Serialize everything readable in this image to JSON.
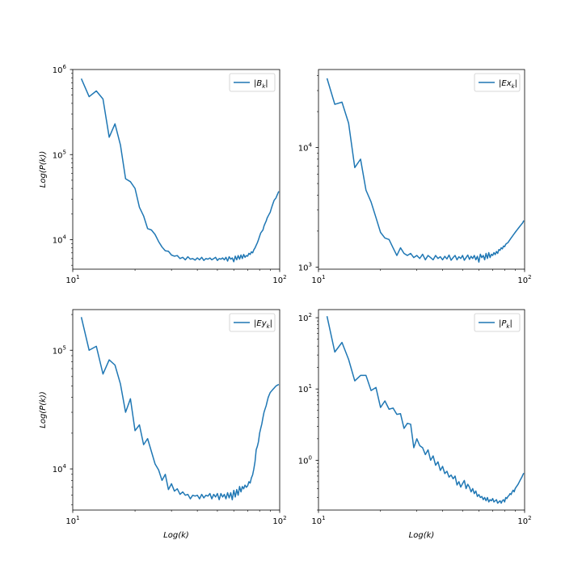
{
  "chart_data": [
    {
      "type": "line",
      "xscale": "log",
      "yscale": "log",
      "xlim": [
        10,
        100
      ],
      "ylim": [
        4500,
        1000000
      ],
      "xlabel": "",
      "ylabel": "Log(P(k))",
      "xticks": [
        {
          "base": "10",
          "exp": "1",
          "value": 10
        },
        {
          "base": "10",
          "exp": "2",
          "value": 100
        }
      ],
      "yticks": [
        {
          "base": "10",
          "exp": "4",
          "value": 10000
        },
        {
          "base": "10",
          "exp": "5",
          "value": 100000
        },
        {
          "base": "10",
          "exp": "6",
          "value": 1000000
        }
      ],
      "legend": "top-right",
      "color": "#1f77b4",
      "series": [
        {
          "name": "|B_k|",
          "x": [
            11,
            12,
            13,
            14,
            15,
            16,
            17,
            18,
            19,
            20,
            21,
            22,
            23,
            24,
            25,
            26,
            27,
            28,
            29,
            30,
            31,
            32,
            33,
            34,
            35,
            36,
            37,
            38,
            39,
            40,
            41,
            42,
            43,
            44,
            45,
            46,
            47,
            48,
            49,
            50,
            51,
            52,
            53,
            54,
            55,
            56,
            57,
            58,
            59,
            60,
            61,
            62,
            63,
            64,
            65,
            66,
            67,
            68,
            69,
            70,
            71,
            72,
            73,
            74,
            75,
            76,
            77,
            78,
            79,
            80,
            81,
            82,
            83,
            84,
            85,
            86,
            87,
            88,
            89,
            90,
            91,
            92,
            93,
            94,
            95,
            96,
            97,
            98,
            99
          ],
          "y": [
            780000,
            480000,
            560000,
            450000,
            160000,
            230000,
            130000,
            52000,
            48000,
            40000,
            24000,
            19000,
            13500,
            13000,
            11500,
            9500,
            8200,
            7400,
            7300,
            6600,
            6400,
            6500,
            6000,
            6200,
            5800,
            6300,
            5900,
            6000,
            5750,
            6100,
            5800,
            6200,
            5700,
            6000,
            5900,
            6100,
            5800,
            6000,
            6200,
            5700,
            6000,
            5900,
            6100,
            5800,
            6200,
            5600,
            6300,
            5900,
            6100,
            5500,
            6400,
            5800,
            6500,
            5900,
            6600,
            6000,
            6700,
            6200,
            6500,
            6400,
            6900,
            6700,
            7200,
            7000,
            7600,
            8000,
            8600,
            9200,
            10000,
            11000,
            12000,
            12500,
            13000,
            14500,
            15500,
            16500,
            18000,
            19000,
            20000,
            21000,
            23000,
            25000,
            27000,
            29000,
            30000,
            31000,
            33000,
            35000,
            37000
          ]
        }
      ]
    },
    {
      "type": "line",
      "xscale": "log",
      "yscale": "log",
      "xlim": [
        10,
        100
      ],
      "ylim": [
        960,
        45000
      ],
      "xlabel": "",
      "ylabel": "",
      "xticks": [
        {
          "base": "10",
          "exp": "1",
          "value": 10
        },
        {
          "base": "10",
          "exp": "2",
          "value": 100
        }
      ],
      "yticks": [
        {
          "base": "10",
          "exp": "3",
          "value": 1000
        },
        {
          "base": "10",
          "exp": "4",
          "value": 10000
        }
      ],
      "legend": "top-right",
      "color": "#1f77b4",
      "series": [
        {
          "name": "|Ex_k|",
          "x": [
            11,
            12,
            13,
            14,
            15,
            16,
            17,
            18,
            19,
            20,
            21,
            22,
            23,
            24,
            25,
            26,
            27,
            28,
            29,
            30,
            31,
            32,
            33,
            34,
            35,
            36,
            37,
            38,
            39,
            40,
            41,
            42,
            43,
            44,
            45,
            46,
            47,
            48,
            49,
            50,
            51,
            52,
            53,
            54,
            55,
            56,
            57,
            58,
            59,
            60,
            61,
            62,
            63,
            64,
            65,
            66,
            67,
            68,
            69,
            70,
            71,
            72,
            73,
            74,
            75,
            76,
            77,
            78,
            79,
            80,
            81,
            82,
            83,
            84,
            85,
            86,
            87,
            88,
            89,
            90,
            91,
            92,
            93,
            94,
            95,
            96,
            97,
            98,
            99
          ],
          "y": [
            38000,
            23000,
            24000,
            16000,
            6800,
            8000,
            4400,
            3500,
            2600,
            1950,
            1750,
            1700,
            1450,
            1250,
            1450,
            1300,
            1250,
            1300,
            1200,
            1250,
            1180,
            1280,
            1150,
            1250,
            1200,
            1150,
            1250,
            1180,
            1220,
            1150,
            1230,
            1170,
            1260,
            1140,
            1200,
            1250,
            1150,
            1220,
            1180,
            1250,
            1140,
            1200,
            1260,
            1160,
            1230,
            1180,
            1250,
            1150,
            1230,
            1100,
            1280,
            1200,
            1250,
            1150,
            1300,
            1180,
            1320,
            1200,
            1280,
            1250,
            1320,
            1270,
            1350,
            1300,
            1400,
            1380,
            1450,
            1420,
            1500,
            1480,
            1550,
            1580,
            1600,
            1650,
            1700,
            1750,
            1800,
            1850,
            1900,
            1950,
            2000,
            2050,
            2100,
            2150,
            2200,
            2250,
            2300,
            2350,
            2450
          ]
        }
      ]
    },
    {
      "type": "line",
      "xscale": "log",
      "yscale": "log",
      "xlim": [
        10,
        100
      ],
      "ylim": [
        4500,
        220000
      ],
      "xlabel": "Log(k)",
      "ylabel": "Log(P(k))",
      "xticks": [
        {
          "base": "10",
          "exp": "1",
          "value": 10
        },
        {
          "base": "10",
          "exp": "2",
          "value": 100
        }
      ],
      "yticks": [
        {
          "base": "10",
          "exp": "4",
          "value": 10000
        },
        {
          "base": "10",
          "exp": "5",
          "value": 100000
        }
      ],
      "legend": "top-right",
      "color": "#1f77b4",
      "series": [
        {
          "name": "|Ey_k|",
          "x": [
            11,
            12,
            13,
            14,
            15,
            16,
            17,
            18,
            19,
            20,
            21,
            22,
            23,
            24,
            25,
            26,
            27,
            28,
            29,
            30,
            31,
            32,
            33,
            34,
            35,
            36,
            37,
            38,
            39,
            40,
            41,
            42,
            43,
            44,
            45,
            46,
            47,
            48,
            49,
            50,
            51,
            52,
            53,
            54,
            55,
            56,
            57,
            58,
            59,
            60,
            61,
            62,
            63,
            64,
            65,
            66,
            67,
            68,
            69,
            70,
            71,
            72,
            73,
            74,
            75,
            76,
            77,
            78,
            79,
            80,
            81,
            82,
            83,
            84,
            85,
            86,
            87,
            88,
            89,
            90,
            91,
            92,
            93,
            94,
            95,
            96,
            97,
            98,
            99
          ],
          "y": [
            190000,
            100000,
            108000,
            63000,
            83000,
            75000,
            52000,
            30000,
            39000,
            21000,
            23500,
            16000,
            18000,
            14000,
            11000,
            9800,
            8000,
            9000,
            6700,
            7500,
            6500,
            6800,
            6100,
            6400,
            6000,
            6100,
            5600,
            6000,
            5900,
            6000,
            5600,
            6100,
            5700,
            6000,
            5900,
            6200,
            5600,
            6100,
            5800,
            6200,
            5500,
            6200,
            5800,
            6100,
            5600,
            6300,
            5700,
            6300,
            5500,
            6600,
            5800,
            6700,
            6000,
            7100,
            6400,
            7100,
            6800,
            7300,
            7000,
            7200,
            7800,
            7600,
            8400,
            8900,
            10000,
            11500,
            14500,
            15500,
            17000,
            20000,
            22000,
            24000,
            27000,
            30000,
            32000,
            34000,
            37000,
            40000,
            42000,
            44000,
            45000,
            46000,
            47000,
            48000,
            49000,
            50000,
            50500,
            51000,
            51500
          ]
        }
      ]
    },
    {
      "type": "line",
      "xscale": "log",
      "yscale": "log",
      "xlim": [
        10,
        100
      ],
      "ylim": [
        0.2,
        130
      ],
      "xlabel": "Log(k)",
      "ylabel": "",
      "xticks": [
        {
          "base": "10",
          "exp": "1",
          "value": 10
        },
        {
          "base": "10",
          "exp": "2",
          "value": 100
        }
      ],
      "yticks": [
        {
          "base": "10",
          "exp": "0",
          "value": 1
        },
        {
          "base": "10",
          "exp": "1",
          "value": 10
        },
        {
          "base": "10",
          "exp": "2",
          "value": 100
        }
      ],
      "legend": "top-right",
      "color": "#1f77b4",
      "series": [
        {
          "name": "|P_k|",
          "x": [
            11,
            12,
            13,
            14,
            15,
            16,
            17,
            18,
            19,
            20,
            21,
            22,
            23,
            24,
            25,
            26,
            27,
            28,
            29,
            30,
            31,
            32,
            33,
            34,
            35,
            36,
            37,
            38,
            39,
            40,
            41,
            42,
            43,
            44,
            45,
            46,
            47,
            48,
            49,
            50,
            51,
            52,
            53,
            54,
            55,
            56,
            57,
            58,
            59,
            60,
            61,
            62,
            63,
            64,
            65,
            66,
            67,
            68,
            69,
            70,
            71,
            72,
            73,
            74,
            75,
            76,
            77,
            78,
            79,
            80,
            81,
            82,
            83,
            84,
            85,
            86,
            87,
            88,
            89,
            90,
            91,
            92,
            93,
            94,
            95,
            96,
            97,
            98,
            99
          ],
          "y": [
            105,
            33,
            45,
            26,
            13,
            15.5,
            15.5,
            9.5,
            10.5,
            5.5,
            6.8,
            5.2,
            5.4,
            4.4,
            4.5,
            2.8,
            3.3,
            3.2,
            1.5,
            2.0,
            1.6,
            1.5,
            1.2,
            1.4,
            1.0,
            1.15,
            0.85,
            0.95,
            0.72,
            0.82,
            0.65,
            0.7,
            0.58,
            0.62,
            0.55,
            0.6,
            0.45,
            0.5,
            0.42,
            0.47,
            0.52,
            0.4,
            0.46,
            0.42,
            0.36,
            0.4,
            0.34,
            0.37,
            0.31,
            0.33,
            0.3,
            0.31,
            0.28,
            0.3,
            0.27,
            0.3,
            0.26,
            0.28,
            0.27,
            0.29,
            0.26,
            0.27,
            0.28,
            0.25,
            0.26,
            0.27,
            0.25,
            0.27,
            0.28,
            0.26,
            0.3,
            0.29,
            0.31,
            0.32,
            0.34,
            0.33,
            0.36,
            0.38,
            0.36,
            0.4,
            0.42,
            0.44,
            0.46,
            0.49,
            0.52,
            0.55,
            0.58,
            0.62,
            0.66
          ]
        }
      ]
    }
  ]
}
